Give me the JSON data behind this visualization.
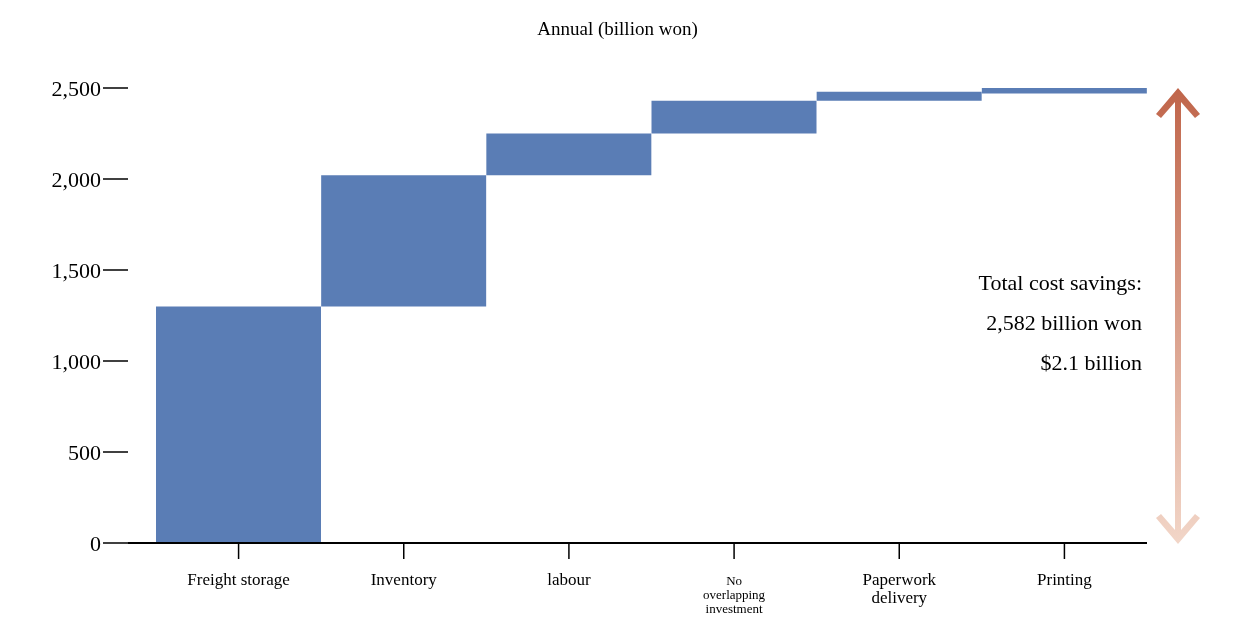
{
  "chart_data": {
    "type": "bar",
    "title": "Annual (billion won)",
    "categories": [
      "Freight storage",
      "Inventory",
      "labour",
      "No overlapping investment",
      "Paperwork delivery",
      "Printing"
    ],
    "values": [
      1300,
      720,
      230,
      180,
      50,
      30
    ],
    "base": [
      0,
      1300,
      2020,
      2250,
      2430,
      2470
    ],
    "color": "#5a7db5",
    "ylim": [
      0,
      2500
    ],
    "yticks": [
      0,
      500,
      {
        "value": 1000,
        "label": "1,000"
      },
      {
        "value": 1500,
        "label": "1,500"
      },
      {
        "value": 2000,
        "label": "2,000"
      },
      {
        "value": 2500,
        "label": "2,500"
      }
    ],
    "annotations": [
      "Total cost savings:",
      "2,582 billion won",
      "$2.1 billion"
    ]
  }
}
